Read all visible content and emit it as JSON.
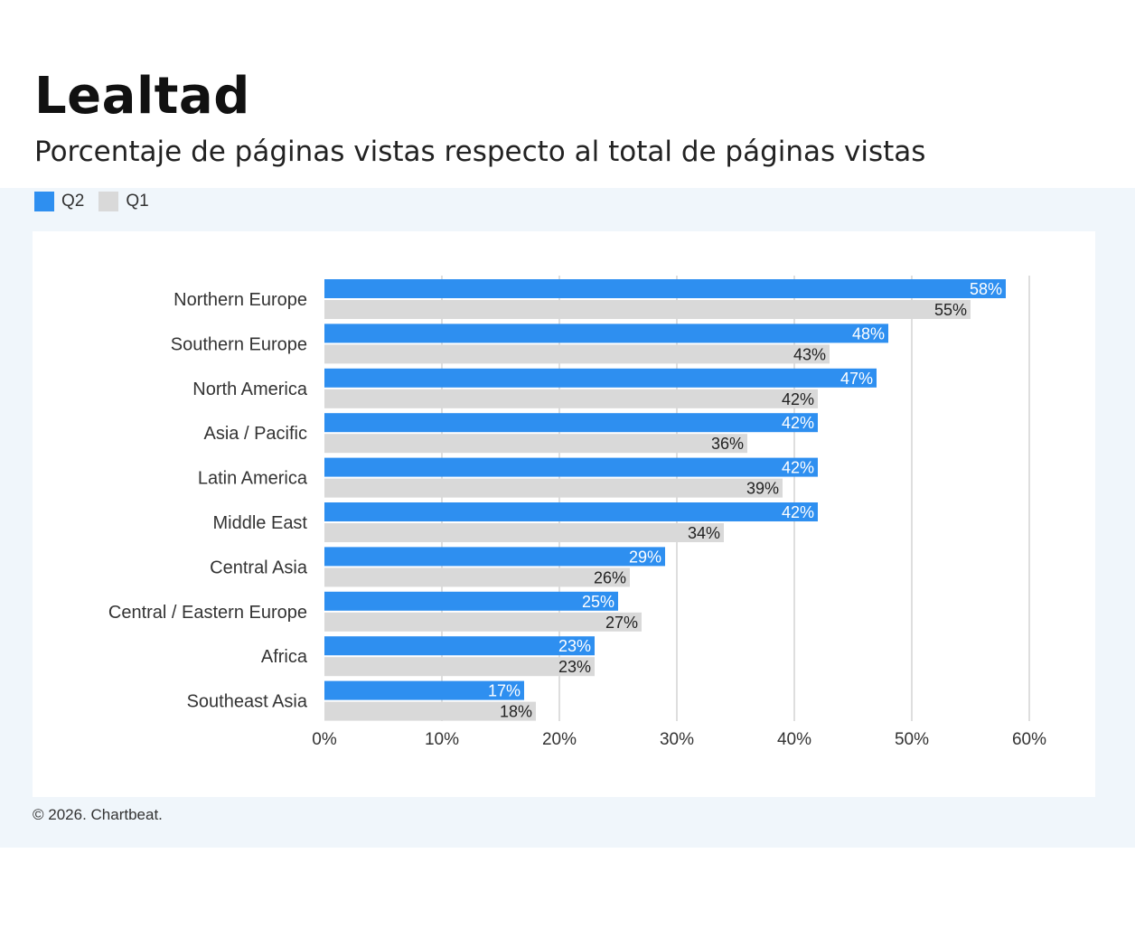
{
  "title": "Lealtad",
  "subtitle": "Porcentaje de páginas vistas respecto al total de páginas vistas",
  "footer": "© 2026. Chartbeat.",
  "colors": {
    "q2": "#2e8ff0",
    "q1": "#d9d9d9",
    "grid": "#d4d4d4",
    "band": "#f0f6fb"
  },
  "chart_data": {
    "type": "bar",
    "orientation": "horizontal",
    "categories": [
      "Northern Europe",
      "Southern Europe",
      "North America",
      "Asia / Pacific",
      "Latin America",
      "Middle East",
      "Central Asia",
      "Central / Eastern Europe",
      "Africa",
      "Southeast Asia"
    ],
    "series": [
      {
        "name": "Q2",
        "values": [
          58,
          48,
          47,
          42,
          42,
          42,
          29,
          25,
          23,
          17
        ],
        "labels": [
          "58%",
          "48%",
          "47%",
          "42%",
          "42%",
          "42%",
          "29%",
          "25%",
          "23%",
          "17%"
        ]
      },
      {
        "name": "Q1",
        "values": [
          55,
          43,
          42,
          36,
          39,
          34,
          26,
          27,
          23,
          18
        ],
        "labels": [
          "55%",
          "43%",
          "42%",
          "36%",
          "39%",
          "34%",
          "26%",
          "27%",
          "23%",
          "18%"
        ]
      }
    ],
    "xlim": [
      0,
      60
    ],
    "x_ticks": [
      "0%",
      "10%",
      "20%",
      "30%",
      "40%",
      "50%",
      "60%"
    ],
    "grid": true,
    "legend_position": "top-left"
  }
}
